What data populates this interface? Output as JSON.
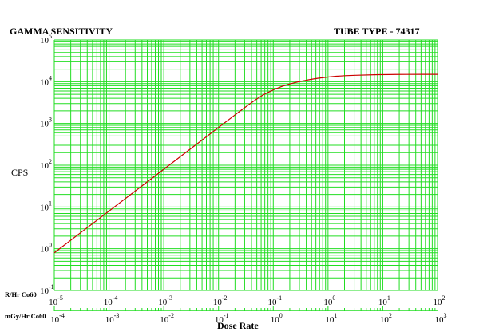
{
  "chart_data": {
    "type": "line",
    "title": "GAMMA SENSITIVITY",
    "subtitle": "TUBE TYPE - 74317",
    "ylabel": "CPS",
    "xlabel": "Dose Rate",
    "x_scale": "log",
    "y_scale": "log",
    "ylim": [
      0.1,
      100000
    ],
    "xlim": [
      1e-05,
      100
    ],
    "grid": true,
    "colors": {
      "grid": "#22dd22",
      "line": "#cc0000"
    },
    "y_ticks": [
      {
        "base": "10",
        "exp": "-1"
      },
      {
        "base": "10",
        "exp": "0"
      },
      {
        "base": "10",
        "exp": "1"
      },
      {
        "base": "10",
        "exp": "2"
      },
      {
        "base": "10",
        "exp": "3"
      },
      {
        "base": "10",
        "exp": "4"
      },
      {
        "base": "10",
        "exp": "5"
      }
    ],
    "x_axis_primary": {
      "label": "R/Hr Co60",
      "ticks": [
        {
          "base": "10",
          "exp": "-5"
        },
        {
          "base": "10",
          "exp": "-4"
        },
        {
          "base": "10",
          "exp": "-3"
        },
        {
          "base": "10",
          "exp": "-2"
        },
        {
          "base": "10",
          "exp": "-1"
        },
        {
          "base": "10",
          "exp": "0"
        },
        {
          "base": "10",
          "exp": "1"
        },
        {
          "base": "10",
          "exp": "2"
        }
      ]
    },
    "x_axis_secondary": {
      "label": "mGy/Hr Co60",
      "ticks": [
        {
          "base": "10",
          "exp": "-4"
        },
        {
          "base": "10",
          "exp": "-3"
        },
        {
          "base": "10",
          "exp": "-2"
        },
        {
          "base": "10",
          "exp": "-1"
        },
        {
          "base": "10",
          "exp": "0"
        },
        {
          "base": "10",
          "exp": "1"
        },
        {
          "base": "10",
          "exp": "2"
        },
        {
          "base": "10",
          "exp": "3"
        }
      ]
    },
    "series": [
      {
        "x": [
          1e-05,
          0.0001,
          0.001,
          0.01,
          0.05,
          0.1,
          0.2,
          0.5,
          1,
          2,
          5,
          10,
          30,
          100
        ],
        "y": [
          0.8,
          8,
          80,
          800,
          4000,
          6500,
          9000,
          11500,
          13000,
          14000,
          14500,
          14800,
          15000,
          15000
        ]
      }
    ]
  }
}
